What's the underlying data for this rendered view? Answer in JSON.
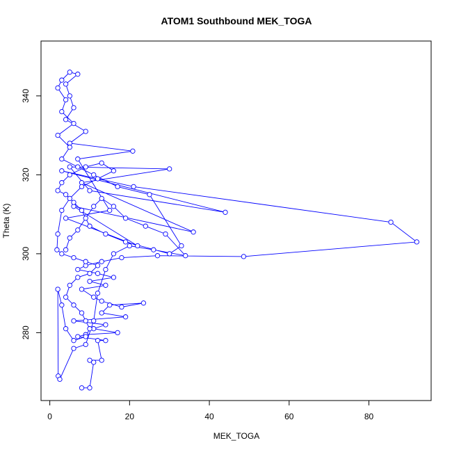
{
  "chart_data": {
    "type": "line",
    "title": "ATOM1 Southbound MEK_TOGA",
    "xlabel": "MEK_TOGA",
    "ylabel": "Theta (K)",
    "xlim": [
      -2.2,
      95.6
    ],
    "ylim": [
      262.8,
      353.9
    ],
    "x_ticks": [
      0,
      20,
      40,
      60,
      80
    ],
    "y_ticks": [
      280,
      300,
      320,
      340
    ],
    "grid": false,
    "legend": "none",
    "series_color": "#0000ff",
    "marker": "open-circle",
    "series": [
      {
        "values": [
          [
            8,
            266
          ],
          [
            10,
            266
          ],
          [
            11,
            272.5
          ],
          [
            10,
            273
          ],
          [
            13,
            273
          ],
          [
            12,
            278
          ],
          [
            14,
            278
          ],
          [
            7,
            279
          ],
          [
            9,
            279.5
          ],
          [
            17,
            280
          ],
          [
            11,
            281
          ],
          [
            14,
            282
          ],
          [
            6,
            283
          ],
          [
            19,
            284
          ],
          [
            13,
            285
          ],
          [
            15,
            287
          ],
          [
            23.5,
            287.5
          ],
          [
            18,
            286.5
          ],
          [
            13,
            288
          ],
          [
            11,
            289
          ],
          [
            8,
            291
          ],
          [
            14,
            292
          ],
          [
            10,
            293
          ],
          [
            16,
            294
          ],
          [
            12,
            295
          ],
          [
            7,
            296
          ],
          [
            9,
            297
          ],
          [
            13,
            298
          ],
          [
            18,
            299
          ],
          [
            27,
            299.5
          ],
          [
            48.6,
            299.3
          ],
          [
            92,
            303
          ],
          [
            85.5,
            308
          ],
          [
            21,
            317
          ],
          [
            3,
            321
          ],
          [
            44,
            310.5
          ],
          [
            10,
            316
          ],
          [
            5,
            322
          ],
          [
            30,
            321.5
          ],
          [
            8,
            318
          ],
          [
            36,
            305.5
          ],
          [
            6,
            312
          ],
          [
            22,
            302
          ],
          [
            4,
            309
          ],
          [
            15,
            311
          ],
          [
            7,
            324
          ],
          [
            20.8,
            326
          ],
          [
            5,
            328
          ],
          [
            9,
            331
          ],
          [
            4,
            334
          ],
          [
            6,
            337
          ],
          [
            5,
            340
          ],
          [
            4,
            343
          ],
          [
            7,
            345.5
          ],
          [
            5,
            346
          ],
          [
            3,
            344
          ],
          [
            2,
            342
          ],
          [
            4,
            339
          ],
          [
            3,
            336
          ],
          [
            6,
            333
          ],
          [
            2,
            330
          ],
          [
            5,
            327
          ],
          [
            3,
            324
          ],
          [
            7,
            322
          ],
          [
            11,
            320
          ],
          [
            17,
            317
          ],
          [
            25,
            315
          ],
          [
            33,
            302
          ],
          [
            30,
            300
          ],
          [
            19,
            303
          ],
          [
            14,
            305
          ],
          [
            10,
            307
          ],
          [
            8,
            311
          ],
          [
            6,
            313
          ],
          [
            4,
            315
          ],
          [
            2,
            316
          ],
          [
            3,
            318
          ],
          [
            5,
            320
          ],
          [
            9,
            322
          ],
          [
            13,
            323
          ],
          [
            16,
            321
          ],
          [
            12,
            319
          ],
          [
            8,
            317
          ],
          [
            5,
            314
          ],
          [
            3,
            311
          ],
          [
            2,
            305
          ],
          [
            1.8,
            301
          ],
          [
            3,
            300
          ],
          [
            6,
            299
          ],
          [
            9,
            298
          ],
          [
            12,
            297
          ],
          [
            10,
            295
          ],
          [
            7,
            294
          ],
          [
            5,
            292
          ],
          [
            4,
            289
          ],
          [
            6,
            287
          ],
          [
            8,
            285
          ],
          [
            9,
            283
          ],
          [
            10,
            281
          ],
          [
            9,
            279
          ],
          [
            6,
            278
          ],
          [
            4,
            281
          ],
          [
            3,
            287
          ],
          [
            2,
            291
          ],
          [
            2.1,
            269
          ],
          [
            2.5,
            268.2
          ],
          [
            6,
            276
          ],
          [
            9,
            277
          ],
          [
            11,
            283
          ],
          [
            12,
            290
          ],
          [
            14,
            296
          ],
          [
            16,
            300
          ],
          [
            20,
            302
          ],
          [
            26,
            301
          ],
          [
            34,
            299.5
          ],
          [
            29,
            305
          ],
          [
            24,
            307
          ],
          [
            19,
            309
          ],
          [
            16,
            312
          ],
          [
            13,
            314
          ],
          [
            11,
            312
          ],
          [
            9,
            309
          ],
          [
            7,
            306
          ],
          [
            5,
            304
          ],
          [
            4,
            301
          ]
        ]
      }
    ]
  }
}
